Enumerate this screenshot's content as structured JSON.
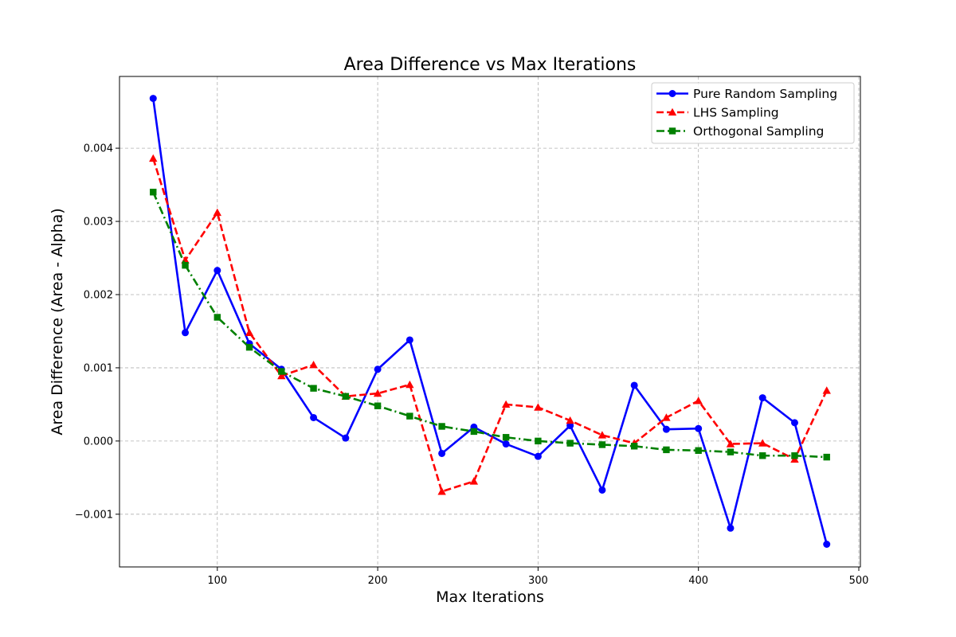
{
  "chart_data": {
    "type": "line",
    "title": "Area Difference vs Max Iterations",
    "xlabel": "Max Iterations",
    "ylabel": "Area Difference (Area - Alpha)",
    "xlim": [
      39,
      501
    ],
    "ylim": [
      -0.00172,
      0.00498
    ],
    "x_ticks": [
      100,
      200,
      300,
      400,
      500
    ],
    "x_tick_labels": [
      "100",
      "200",
      "300",
      "400",
      "500"
    ],
    "y_ticks": [
      -0.001,
      0.0,
      0.001,
      0.002,
      0.003,
      0.004
    ],
    "y_tick_labels": [
      "−0.001",
      "0.000",
      "0.001",
      "0.002",
      "0.003",
      "0.004"
    ],
    "grid": true,
    "legend_position": "top-right",
    "x": [
      60,
      80,
      100,
      120,
      140,
      160,
      180,
      200,
      220,
      240,
      260,
      280,
      300,
      320,
      340,
      360,
      380,
      400,
      420,
      440,
      460,
      480
    ],
    "series": [
      {
        "name": "Pure Random Sampling",
        "color": "#0000ff",
        "line_style": "solid",
        "marker": "circle",
        "values": [
          0.00468,
          0.00148,
          0.00233,
          0.00133,
          0.00098,
          0.00032,
          4e-05,
          0.00098,
          0.00138,
          -0.00017,
          0.00019,
          -4e-05,
          -0.00021,
          0.00021,
          -0.00067,
          0.00076,
          0.00016,
          0.00017,
          -0.00119,
          0.00059,
          0.00025,
          -0.00141
        ]
      },
      {
        "name": "LHS Sampling",
        "color": "#ff0000",
        "line_style": "dashed",
        "marker": "triangle",
        "values": [
          0.00386,
          0.00247,
          0.00312,
          0.00148,
          0.00089,
          0.00104,
          0.00061,
          0.00065,
          0.00077,
          -0.00069,
          -0.00055,
          0.0005,
          0.00046,
          0.00028,
          8e-05,
          -3e-05,
          0.00032,
          0.00055,
          -4e-05,
          -3e-05,
          -0.00025,
          0.00069
        ]
      },
      {
        "name": "Orthogonal Sampling",
        "color": "#008000",
        "line_style": "dashdot",
        "marker": "square",
        "values": [
          0.0034,
          0.0024,
          0.00169,
          0.00128,
          0.00095,
          0.00072,
          0.00061,
          0.00048,
          0.00034,
          0.0002,
          0.00013,
          5e-05,
          0.0,
          -3e-05,
          -5e-05,
          -7e-05,
          -0.00012,
          -0.00013,
          -0.00015,
          -0.0002,
          -0.0002,
          -0.00022
        ]
      }
    ]
  }
}
